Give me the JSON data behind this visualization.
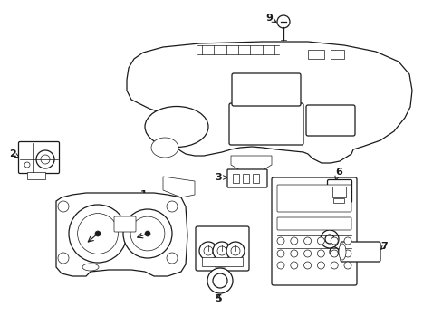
{
  "bg_color": "#ffffff",
  "line_color": "#1a1a1a",
  "lw": 0.9,
  "tlw": 0.5,
  "fig_w": 4.89,
  "fig_h": 3.6,
  "dpi": 100,
  "font_size": 8
}
